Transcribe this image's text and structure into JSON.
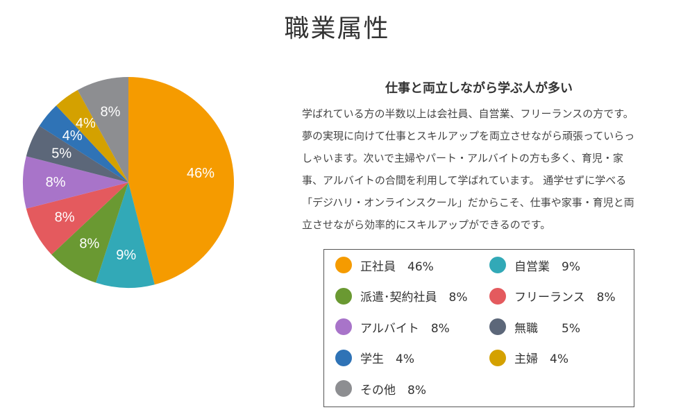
{
  "page": {
    "title": "職業属性",
    "subheading": "仕事と両立しながら学ぶ人が多い",
    "body_lines": [
      "学ばれている方の半数以上は会社員、自営業、フリーランスの方です。",
      "夢の実現に向けて仕事とスキルアップを両立させながら頑張っていらっ",
      "しゃいます。次いで主婦やパート・アルバイトの方も多く、育児・家",
      "事、アルバイトの合間を利用して学ばれています。 通学せずに学べる",
      "「デジハリ・オンラインスクール」だからこそ、仕事や家事・育児と両",
      "立させながら効率的にスキルアップができるのです。"
    ]
  },
  "chart_data": {
    "type": "pie",
    "title": "職業属性",
    "start": "12 o'clock, clockwise",
    "slices": [
      {
        "label": "正社員",
        "value": 46,
        "pct_label": "46%",
        "legend_text": "正社員　46%",
        "color": "#F59B00"
      },
      {
        "label": "自営業",
        "value": 9,
        "pct_label": "9%",
        "legend_text": "自営業　9%",
        "color": "#32A9B7"
      },
      {
        "label": "派遣・契約社員",
        "value": 8,
        "pct_label": "8%",
        "legend_text": "派遣･契約社員　8%",
        "color": "#6A9932"
      },
      {
        "label": "フリーランス",
        "value": 8,
        "pct_label": "8%",
        "legend_text": "フリーランス　8%",
        "color": "#E45A5E"
      },
      {
        "label": "アルバイト",
        "value": 8,
        "pct_label": "8%",
        "legend_text": "アルバイト　8%",
        "color": "#A874C9"
      },
      {
        "label": "無職",
        "value": 5,
        "pct_label": "5%",
        "legend_text": "無職　　5%",
        "color": "#5C6779"
      },
      {
        "label": "学生",
        "value": 4,
        "pct_label": "4%",
        "legend_text": "学生　4%",
        "color": "#2F73B6"
      },
      {
        "label": "主婦",
        "value": 4,
        "pct_label": "4%",
        "legend_text": "主婦　4%",
        "color": "#D4A100"
      },
      {
        "label": "その他",
        "value": 8,
        "pct_label": "8%",
        "legend_text": "その他　8%",
        "color": "#8D8E91"
      }
    ],
    "legend_placement": "bottom-right"
  }
}
